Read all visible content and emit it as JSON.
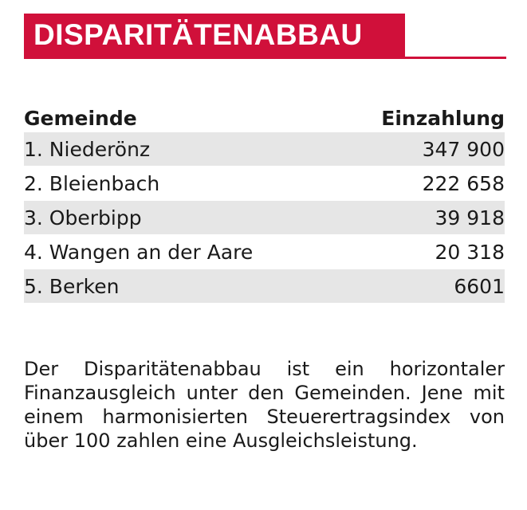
{
  "header": {
    "title": "DISPARITÄTENABBAU"
  },
  "table": {
    "columns": [
      "Gemeinde",
      "Einzahlung"
    ],
    "rows": [
      {
        "name": "1. Niederönz",
        "value": "347 900"
      },
      {
        "name": "2. Bleienbach",
        "value": "222 658"
      },
      {
        "name": "3. Oberbipp",
        "value": "39 918"
      },
      {
        "name": "4. Wangen an der Aare",
        "value": "20 318"
      },
      {
        "name": "5. Berken",
        "value": "6601"
      }
    ]
  },
  "note": {
    "text": "Der Disparitätenabbau ist ein horizontaler Finanzausgleich unter den Gemeinden. Jene mit einem harmonisierten Steuerertrags­index von über 100 zahlen eine Ausgleichs­leistung."
  },
  "colors": {
    "accent": "#d0103a",
    "row_shade": "#e6e6e6"
  }
}
